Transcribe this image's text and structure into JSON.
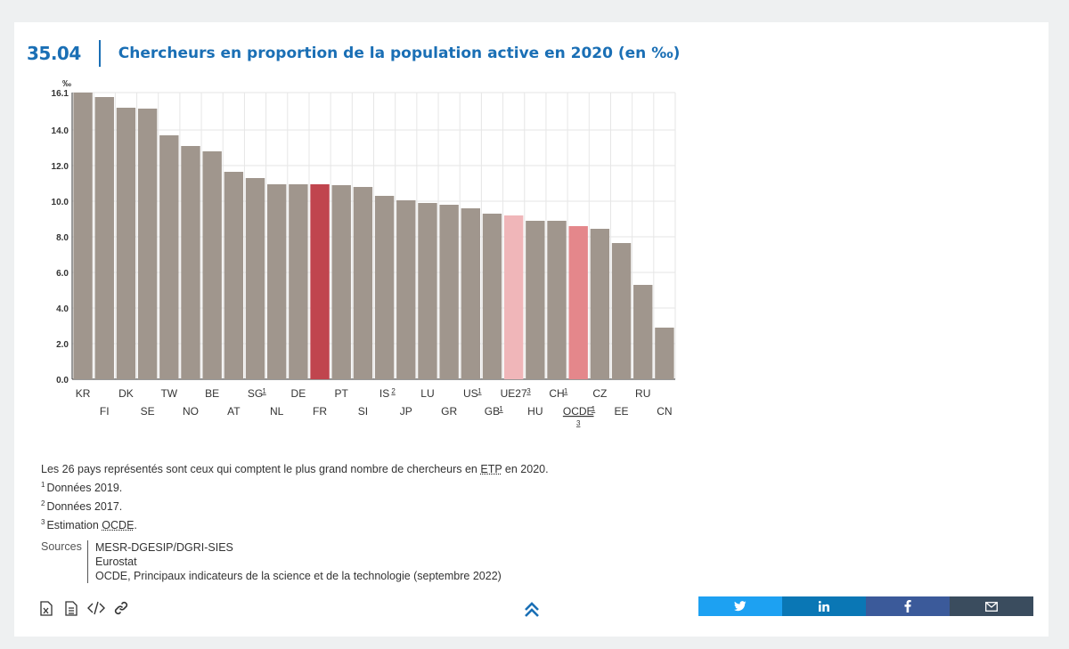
{
  "header": {
    "number": "35.04",
    "title": "Chercheurs en proportion de la population active en 2020 (en ‰)"
  },
  "chart_data": {
    "type": "bar",
    "unit_label": "‰",
    "ylim": [
      0,
      16.1
    ],
    "yticks": [
      {
        "value": 0,
        "label": "0.0"
      },
      {
        "value": 2,
        "label": "2.0"
      },
      {
        "value": 4,
        "label": "4.0"
      },
      {
        "value": 6,
        "label": "6.0"
      },
      {
        "value": 8,
        "label": "8.0"
      },
      {
        "value": 10,
        "label": "10.0"
      },
      {
        "value": 12,
        "label": "12.0"
      },
      {
        "value": 14,
        "label": "14.0"
      },
      {
        "value": 16.1,
        "label": "16.1"
      }
    ],
    "grid": true,
    "categories": [
      "KR",
      "FI",
      "DK",
      "SE",
      "TW",
      "NO",
      "BE",
      "AT",
      "SG",
      "NL",
      "DE",
      "FR",
      "PT",
      "SI",
      "IS",
      "JP",
      "LU",
      "GR",
      "US",
      "GB",
      "UE27",
      "HU",
      "CH",
      "OCDE",
      "CZ",
      "EE",
      "RU",
      "CN"
    ],
    "notes_refs": [
      "",
      "",
      "",
      "",
      "",
      "",
      "",
      "",
      "1",
      "",
      "",
      "",
      "",
      "",
      "2",
      "",
      "",
      "",
      "1",
      "1",
      "3",
      "",
      "1",
      "1 3",
      "",
      "",
      "",
      ""
    ],
    "values": [
      16.1,
      15.85,
      15.25,
      15.2,
      13.7,
      13.1,
      12.8,
      11.65,
      11.3,
      10.95,
      10.95,
      10.95,
      10.9,
      10.8,
      10.3,
      10.05,
      9.9,
      9.8,
      9.6,
      9.3,
      9.2,
      8.9,
      8.9,
      8.6,
      8.45,
      7.65,
      5.3,
      2.9
    ],
    "bar_colors": {
      "default": "#a0968d",
      "FR": "#c0454e",
      "UE27": "#f0b6b9",
      "OCDE": "#e4878b"
    }
  },
  "notes": {
    "intro_pre": "Les 26 pays représentés sont ceux qui comptent le plus grand nombre de chercheurs en ",
    "intro_abbr": "ETP",
    "intro_post": " en 2020.",
    "n1_ref": "1",
    "n1": "Données 2019.",
    "n2_ref": "2",
    "n2": "Données 2017.",
    "n3_ref": "3",
    "n3_pre": "Estimation ",
    "n3_abbr": "OCDE",
    "n3_post": "."
  },
  "sources": {
    "label": "Sources",
    "items": [
      "MESR-DGESIP/DGRI-SIES",
      "Eurostat",
      "OCDE, Principaux indicateurs de la science et de la technologie (septembre 2022)"
    ]
  },
  "tools": [
    "excel-icon",
    "document-icon",
    "code-icon",
    "link-icon"
  ],
  "share": [
    {
      "name": "twitter",
      "color": "#1da1f2"
    },
    {
      "name": "linkedin",
      "color": "#0a77b5"
    },
    {
      "name": "facebook",
      "color": "#3b5a9a"
    },
    {
      "name": "email",
      "color": "#3a4c5e"
    }
  ]
}
